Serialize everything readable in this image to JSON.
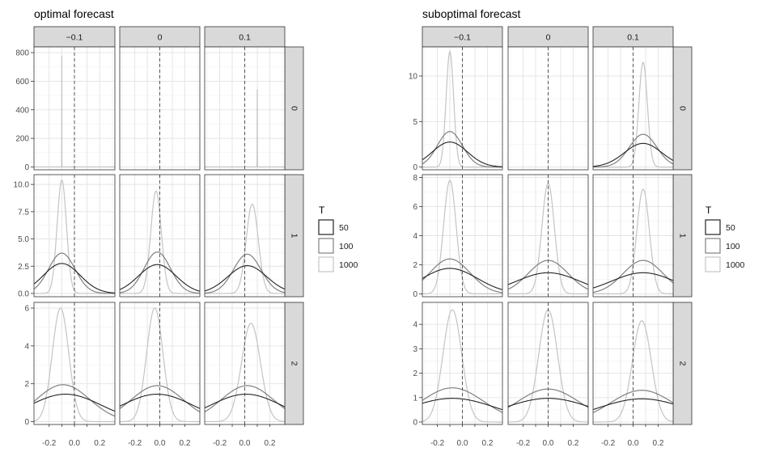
{
  "chart_data": [
    {
      "type": "line",
      "title": "optimal forecast",
      "col_facets": [
        "−0.1",
        "0",
        "0.1"
      ],
      "row_facets": [
        "0",
        "1",
        "2"
      ],
      "legend": {
        "title": "T",
        "position": "right",
        "entries": [
          "50",
          "100",
          "1000"
        ]
      },
      "series_colors": {
        "50": "#222222",
        "100": "#808080",
        "1000": "#c4c4c4"
      },
      "vline_x": 0,
      "xlim": [
        -0.32,
        0.32
      ],
      "x_ticks": [
        "-0.2",
        "-0.1",
        "0.0",
        "0.1",
        "0.2"
      ],
      "x_tick_values": [
        -0.2,
        -0.1,
        0.0,
        0.1,
        0.2
      ],
      "grid": true,
      "rows": [
        {
          "ylim": [
            -20,
            840
          ],
          "y_ticks": [
            0,
            200,
            400,
            600,
            800
          ],
          "y_tick_labels": [
            "0",
            "200",
            "400",
            "600",
            "800"
          ]
        },
        {
          "ylim": [
            -0.3,
            10.9
          ],
          "y_ticks": [
            0,
            2.5,
            5,
            7.5,
            10
          ],
          "y_tick_labels": [
            "0.0",
            "2.5",
            "5.0",
            "7.5",
            "10.0"
          ]
        },
        {
          "ylim": [
            -0.15,
            6.3
          ],
          "y_ticks": [
            0,
            2,
            4,
            6
          ],
          "y_tick_labels": [
            "0",
            "2",
            "4",
            "6"
          ]
        }
      ],
      "panels": [
        {
          "row": 0,
          "col": 0,
          "curves": {
            "1000": {
              "mu": -0.1,
              "sd": 0.00052,
              "peak": 780
            }
          }
        },
        {
          "row": 0,
          "col": 1,
          "curves": {}
        },
        {
          "row": 0,
          "col": 2,
          "curves": {
            "1000": {
              "mu": 0.1,
              "sd": 0.00075,
              "peak": 545
            }
          }
        },
        {
          "row": 1,
          "col": 0,
          "curves": {
            "50": {
              "mu": -0.1,
              "sd": 0.145,
              "peak": 2.75
            },
            "100": {
              "mu": -0.1,
              "sd": 0.105,
              "peak": 3.7
            },
            "1000": {
              "mu": -0.1,
              "sd": 0.037,
              "peak": 10.4
            }
          }
        },
        {
          "row": 1,
          "col": 1,
          "curves": {
            "50": {
              "mu": -0.02,
              "sd": 0.15,
              "peak": 2.65
            },
            "100": {
              "mu": -0.02,
              "sd": 0.105,
              "peak": 3.8
            },
            "1000": {
              "mu": -0.03,
              "sd": 0.042,
              "peak": 9.4
            }
          }
        },
        {
          "row": 1,
          "col": 2,
          "curves": {
            "50": {
              "mu": 0.02,
              "sd": 0.155,
              "peak": 2.55
            },
            "100": {
              "mu": 0.02,
              "sd": 0.11,
              "peak": 3.6
            },
            "1000": {
              "mu": 0.06,
              "sd": 0.048,
              "peak": 8.2
            }
          }
        },
        {
          "row": 2,
          "col": 0,
          "curves": {
            "50": {
              "mu": -0.07,
              "sd": 0.28,
              "peak": 1.45
            },
            "100": {
              "mu": -0.09,
              "sd": 0.21,
              "peak": 1.95
            },
            "1000": {
              "mu": -0.11,
              "sd": 0.065,
              "peak": 6.0
            }
          }
        },
        {
          "row": 2,
          "col": 1,
          "curves": {
            "50": {
              "mu": -0.02,
              "sd": 0.28,
              "peak": 1.45
            },
            "100": {
              "mu": -0.02,
              "sd": 0.21,
              "peak": 1.9
            },
            "1000": {
              "mu": -0.04,
              "sd": 0.065,
              "peak": 6.0
            }
          }
        },
        {
          "row": 2,
          "col": 2,
          "curves": {
            "50": {
              "mu": 0.01,
              "sd": 0.28,
              "peak": 1.45
            },
            "100": {
              "mu": 0.02,
              "sd": 0.21,
              "peak": 1.9
            },
            "1000": {
              "mu": 0.05,
              "sd": 0.075,
              "peak": 5.2
            }
          }
        }
      ]
    },
    {
      "type": "line",
      "title": "suboptimal forecast",
      "col_facets": [
        "−0.1",
        "0",
        "0.1"
      ],
      "row_facets": [
        "0",
        "1",
        "2"
      ],
      "legend": {
        "title": "T",
        "position": "right",
        "entries": [
          "50",
          "100",
          "1000"
        ]
      },
      "series_colors": {
        "50": "#222222",
        "100": "#808080",
        "1000": "#c4c4c4"
      },
      "vline_x": 0,
      "xlim": [
        -0.32,
        0.32
      ],
      "x_ticks": [
        "-0.2",
        "-0.1",
        "0.0",
        "0.1",
        "0.2"
      ],
      "x_tick_values": [
        -0.2,
        -0.1,
        0.0,
        0.1,
        0.2
      ],
      "grid": true,
      "rows": [
        {
          "ylim": [
            -0.3,
            13.2
          ],
          "y_ticks": [
            0,
            5,
            10
          ],
          "y_tick_labels": [
            "0",
            "5",
            "10"
          ]
        },
        {
          "ylim": [
            -0.2,
            8.2
          ],
          "y_ticks": [
            0,
            2,
            4,
            6,
            8
          ],
          "y_tick_labels": [
            "0",
            "2",
            "4",
            "6",
            "8"
          ]
        },
        {
          "ylim": [
            -0.1,
            4.9
          ],
          "y_ticks": [
            0,
            1,
            2,
            3,
            4
          ],
          "y_tick_labels": [
            "0",
            "1",
            "2",
            "3",
            "4"
          ]
        }
      ],
      "panels": [
        {
          "row": 0,
          "col": 0,
          "curves": {
            "50": {
              "mu": -0.1,
              "sd": 0.14,
              "peak": 2.75
            },
            "100": {
              "mu": -0.1,
              "sd": 0.1,
              "peak": 3.9
            },
            "1000": {
              "mu": -0.1,
              "sd": 0.03,
              "peak": 12.7
            }
          }
        },
        {
          "row": 0,
          "col": 1,
          "curves": {}
        },
        {
          "row": 0,
          "col": 2,
          "curves": {
            "50": {
              "mu": 0.08,
              "sd": 0.15,
              "peak": 2.6
            },
            "100": {
              "mu": 0.08,
              "sd": 0.11,
              "peak": 3.6
            },
            "1000": {
              "mu": 0.08,
              "sd": 0.034,
              "peak": 11.5
            }
          }
        },
        {
          "row": 1,
          "col": 0,
          "curves": {
            "50": {
              "mu": -0.1,
              "sd": 0.22,
              "peak": 1.75
            },
            "100": {
              "mu": -0.1,
              "sd": 0.16,
              "peak": 2.4
            },
            "1000": {
              "mu": -0.1,
              "sd": 0.05,
              "peak": 7.8
            }
          }
        },
        {
          "row": 1,
          "col": 1,
          "curves": {
            "50": {
              "mu": 0.0,
              "sd": 0.25,
              "peak": 1.45
            },
            "100": {
              "mu": 0.0,
              "sd": 0.16,
              "peak": 2.3
            },
            "1000": {
              "mu": 0.0,
              "sd": 0.05,
              "peak": 7.6
            }
          }
        },
        {
          "row": 1,
          "col": 2,
          "curves": {
            "50": {
              "mu": 0.08,
              "sd": 0.25,
              "peak": 1.45
            },
            "100": {
              "mu": 0.08,
              "sd": 0.16,
              "peak": 2.3
            },
            "1000": {
              "mu": 0.08,
              "sd": 0.05,
              "peak": 7.2
            }
          }
        },
        {
          "row": 2,
          "col": 0,
          "curves": {
            "50": {
              "mu": -0.08,
              "sd": 0.35,
              "peak": 0.97
            },
            "100": {
              "mu": -0.08,
              "sd": 0.25,
              "peak": 1.4
            },
            "1000": {
              "mu": -0.08,
              "sd": 0.075,
              "peak": 4.6
            }
          }
        },
        {
          "row": 2,
          "col": 1,
          "curves": {
            "50": {
              "mu": 0.0,
              "sd": 0.35,
              "peak": 0.97
            },
            "100": {
              "mu": 0.0,
              "sd": 0.25,
              "peak": 1.35
            },
            "1000": {
              "mu": 0.0,
              "sd": 0.075,
              "peak": 4.6
            }
          }
        },
        {
          "row": 2,
          "col": 2,
          "curves": {
            "50": {
              "mu": 0.07,
              "sd": 0.35,
              "peak": 0.95
            },
            "100": {
              "mu": 0.07,
              "sd": 0.25,
              "peak": 1.3
            },
            "1000": {
              "mu": 0.07,
              "sd": 0.075,
              "peak": 4.15
            }
          }
        }
      ]
    }
  ]
}
